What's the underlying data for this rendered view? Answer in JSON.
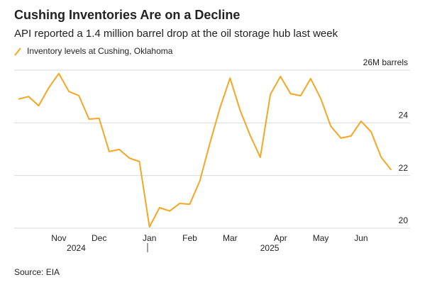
{
  "chart_data": {
    "type": "line",
    "title": "Cushing Inventories Are on a Decline",
    "subtitle": "API reported a 1.4 million barrel drop at the oil storage hub last week",
    "source": "Source: EIA",
    "categories": [
      null,
      null,
      null,
      null,
      "Nov",
      null,
      null,
      null,
      "Dec",
      null,
      null,
      null,
      null,
      "Jan",
      null,
      null,
      null,
      "Feb",
      null,
      null,
      null,
      "Mar",
      null,
      null,
      null,
      null,
      "Apr",
      null,
      null,
      null,
      "May",
      null,
      null,
      null,
      "Jun",
      null,
      null,
      null
    ],
    "year_labels": [
      "2024",
      "2025"
    ],
    "series": [
      {
        "name": "Inventory levels at Cushing, Oklahoma",
        "color": "#f5a623",
        "values": [
          24.9,
          25.0,
          24.65,
          25.33,
          25.87,
          25.19,
          25.03,
          24.14,
          24.17,
          22.91,
          22.99,
          22.66,
          22.53,
          20.05,
          20.78,
          20.65,
          20.94,
          20.91,
          21.8,
          23.23,
          24.57,
          25.7,
          24.47,
          23.52,
          22.69,
          25.08,
          25.76,
          25.11,
          25.03,
          25.68,
          24.92,
          23.87,
          23.42,
          23.5,
          24.06,
          23.66,
          22.69,
          22.21
        ]
      }
    ],
    "ylim": [
      20,
      26
    ],
    "yticks": [
      20,
      22,
      24,
      {
        "value": 26,
        "label": "26M barrels"
      }
    ],
    "grid": true
  }
}
